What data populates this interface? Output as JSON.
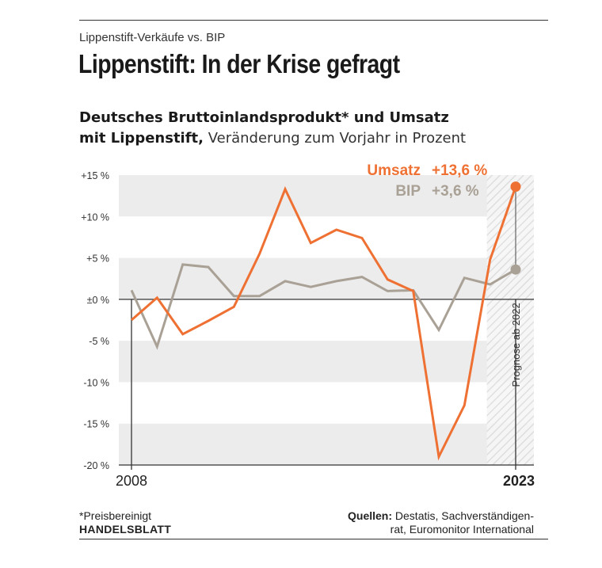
{
  "kicker": "Lippenstift-Verkäufe vs. BIP",
  "headline": "Lippenstift: In der Krise gefragt",
  "subtitle": {
    "line1_bold": "Deutsches Bruttoinlandsprodukt* und Umsatz",
    "line2_bold": "mit Lippenstift,",
    "line2_light": " Veränderung zum Vorjahr in Prozent"
  },
  "footnote": "*Preisbereinigt",
  "brand": "HANDELSBLATT",
  "source": {
    "label": "Quellen:",
    "text1": " Destatis, Sachverständigen-",
    "text2": "rat, Euromonitor International"
  },
  "colors": {
    "umsatz": "#ee7133",
    "bip": "#aaa196",
    "band": "#ececec",
    "axis": "#333333"
  },
  "chart_data": {
    "type": "line",
    "x": [
      2008,
      2009,
      2010,
      2011,
      2012,
      2013,
      2014,
      2015,
      2016,
      2017,
      2018,
      2019,
      2020,
      2021,
      2022,
      2023
    ],
    "x_tick_labels": [
      {
        "x": 2008,
        "label": "2008"
      },
      {
        "x": 2023,
        "label": "2023"
      }
    ],
    "ylim": [
      -20,
      15
    ],
    "y_ticks": [
      15,
      10,
      5,
      0,
      -5,
      -10,
      -15,
      -20
    ],
    "y_tick_labels": [
      "+15 %",
      "+10 %",
      "+5 %",
      "±0 %",
      "-5 %",
      "-10 %",
      "-15 %",
      "-20 %"
    ],
    "series": [
      {
        "name": "BIP",
        "end_label": "+3,6 %",
        "values": [
          1.1,
          -5.7,
          4.2,
          3.9,
          0.4,
          0.4,
          2.2,
          1.5,
          2.2,
          2.7,
          1.0,
          1.1,
          -3.7,
          2.6,
          1.8,
          3.6
        ]
      },
      {
        "name": "Umsatz",
        "end_label": "+13,6 %",
        "values": [
          -2.5,
          0.2,
          -4.2,
          -2.6,
          -0.9,
          5.5,
          13.3,
          6.8,
          8.4,
          7.4,
          2.4,
          1.0,
          -19.0,
          -12.8,
          4.8,
          13.6
        ]
      }
    ],
    "forecast": {
      "from": 2022,
      "label": "Prognose ab 2022"
    },
    "grid": "horizontal bands"
  }
}
